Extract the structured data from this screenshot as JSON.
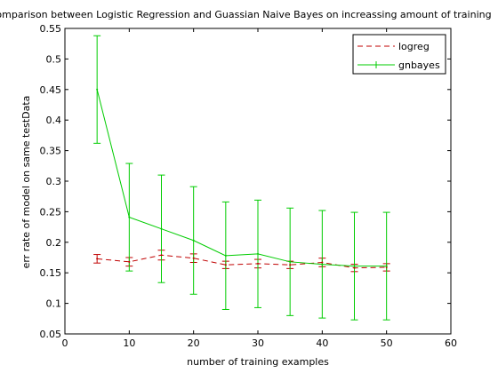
{
  "chart_data": {
    "type": "line",
    "title": "omparison between Logistic Regression and Guassian Naive Bayes on increassing amount of training",
    "xlabel": "number of training examples",
    "ylabel": "err rate of model on same testData",
    "xlim": [
      0,
      60
    ],
    "ylim": [
      0.05,
      0.55
    ],
    "xticks": [
      "0",
      "10",
      "20",
      "30",
      "40",
      "50",
      "60"
    ],
    "yticks": [
      "0.05",
      "0.1",
      "0.15",
      "0.2",
      "0.25",
      "0.3",
      "0.35",
      "0.4",
      "0.45",
      "0.5",
      "0.55"
    ],
    "grid": false,
    "legend_position": "top-right",
    "x": [
      5,
      10,
      15,
      20,
      25,
      30,
      35,
      40,
      45,
      50
    ],
    "series": [
      {
        "name": "logreg",
        "color": "#c00000",
        "style": "dashed",
        "values": [
          0.173,
          0.168,
          0.179,
          0.174,
          0.163,
          0.165,
          0.163,
          0.167,
          0.158,
          0.159
        ],
        "err": [
          0.007,
          0.007,
          0.008,
          0.007,
          0.006,
          0.007,
          0.006,
          0.007,
          0.006,
          0.006
        ]
      },
      {
        "name": "gnbayes",
        "color": "#00cc00",
        "style": "solid",
        "values": [
          0.45,
          0.241,
          0.222,
          0.203,
          0.178,
          0.181,
          0.168,
          0.164,
          0.161,
          0.161
        ],
        "err": [
          0.088,
          0.088,
          0.088,
          0.088,
          0.088,
          0.088,
          0.088,
          0.088,
          0.088,
          0.088
        ]
      }
    ]
  }
}
